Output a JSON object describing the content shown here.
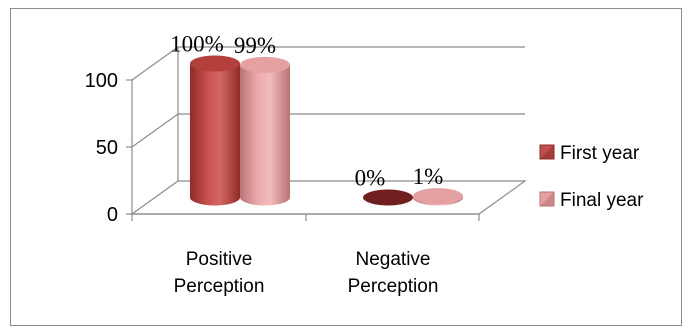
{
  "chart_data": {
    "type": "bar",
    "categories": [
      "Positive Perception",
      "Negative Perception"
    ],
    "category_lines": [
      [
        "Positive",
        "Perception"
      ],
      [
        "Negative",
        "Perception"
      ]
    ],
    "series": [
      {
        "name": "First year",
        "values": [
          100,
          0
        ],
        "labels": [
          "100%",
          "0%"
        ],
        "color": "#c0504d"
      },
      {
        "name": "Final year",
        "values": [
          99,
          1
        ],
        "labels": [
          "99%",
          "1%"
        ],
        "color": "#e6a0a2"
      }
    ],
    "ylim": [
      0,
      100
    ],
    "yticks": [
      "0",
      "50",
      "100"
    ],
    "grid": true,
    "legend_position": "right",
    "three_d": true
  }
}
